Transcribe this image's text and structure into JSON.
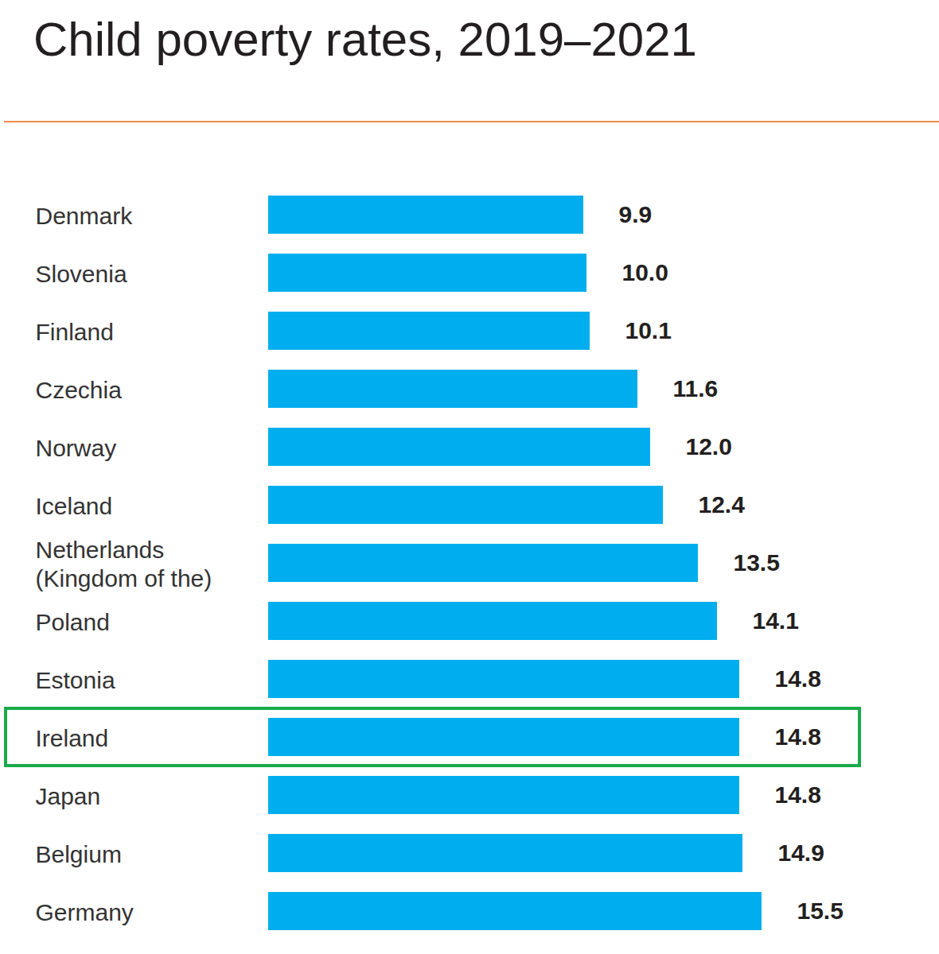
{
  "chart_data": {
    "type": "bar",
    "title": "Child poverty rates, 2019–2021",
    "orientation": "horizontal",
    "categories": [
      "Denmark",
      "Slovenia",
      "Finland",
      "Czechia",
      "Norway",
      "Iceland",
      "Netherlands (Kingdom of the)",
      "Poland",
      "Estonia",
      "Ireland",
      "Japan",
      "Belgium",
      "Germany"
    ],
    "values": [
      9.9,
      10.0,
      10.1,
      11.6,
      12.0,
      12.4,
      13.5,
      14.1,
      14.8,
      14.8,
      14.8,
      14.9,
      15.5
    ],
    "value_labels": [
      "9.9",
      "10.0",
      "10.1",
      "11.6",
      "12.0",
      "12.4",
      "13.5",
      "14.1",
      "14.8",
      "14.8",
      "14.8",
      "14.9",
      "15.5"
    ],
    "color": "#00aeef",
    "xlim": [
      0,
      20
    ],
    "data_labels": true,
    "tick_labels": "y",
    "grid": false
  }
}
